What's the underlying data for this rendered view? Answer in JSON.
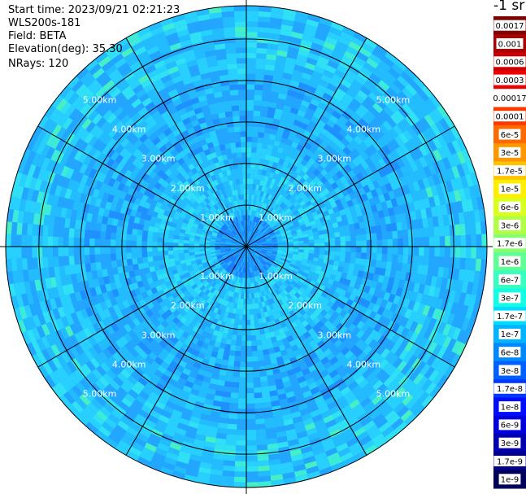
{
  "header": {
    "start_time": "Start time: 2023/09/21 02:21:23",
    "instrument": "WLS200s-181",
    "field": "Field: BETA",
    "elevation": "Elevation(deg): 35.30",
    "nrays": "NRays: 120"
  },
  "colorbar": {
    "units": "-1 sr",
    "labels": [
      "0.0017",
      "0.001",
      "0.0006",
      "0.0003",
      "0.00017",
      "0.0001",
      "6e-5",
      "3e-5",
      "1.7e-5",
      "1e-5",
      "6e-6",
      "3e-6",
      "1.7e-6",
      "1e-6",
      "6e-7",
      "3e-7",
      "1.7e-7",
      "1e-7",
      "6e-8",
      "3e-8",
      "1.7e-8",
      "1e-8",
      "6e-9",
      "3e-9",
      "1.7e-9",
      "1e-9"
    ],
    "colors": [
      "#7f0000",
      "#aa0000",
      "#cc0000",
      "#ee0000",
      "#ffffff",
      "#ff3800",
      "#ff6a00",
      "#ff9800",
      "#ffc400",
      "#ffee00",
      "#d8ff1e",
      "#b0ff46",
      "#88ff6e",
      "#60ff96",
      "#38ffbf",
      "#12fde4",
      "#00dcff",
      "#00b4ff",
      "#0088ff",
      "#0060ff",
      "#0038ff",
      "#000cff",
      "#0000dc",
      "#0000b0",
      "#000088",
      "#00005a"
    ]
  },
  "chart_data": {
    "type": "heatmap",
    "title": "",
    "projection": "polar PPI",
    "range_rings_km": [
      1.0,
      2.0,
      3.0,
      4.0,
      5.0
    ],
    "ring_labels": [
      "1.00km",
      "2.00km",
      "3.00km",
      "4.00km",
      "5.00km"
    ],
    "spoke_angles_deg": [
      0,
      30,
      60,
      90,
      120,
      150,
      180,
      210,
      240,
      270,
      300,
      330
    ],
    "n_rays": 120,
    "max_range_km": 5.8,
    "value_field": "BETA",
    "value_unit": "-1 sr",
    "typical_value_range": [
      "1e-7",
      "6e-7"
    ],
    "range_bands": [
      {
        "range_km": [
          0.0,
          0.8
        ],
        "dominant_color": "#1c8cff"
      },
      {
        "range_km": [
          0.8,
          2.5
        ],
        "dominant_color": "#22c8ff"
      },
      {
        "range_km": [
          2.5,
          5.8
        ],
        "dominant_color": "#1aa4ff"
      }
    ]
  }
}
